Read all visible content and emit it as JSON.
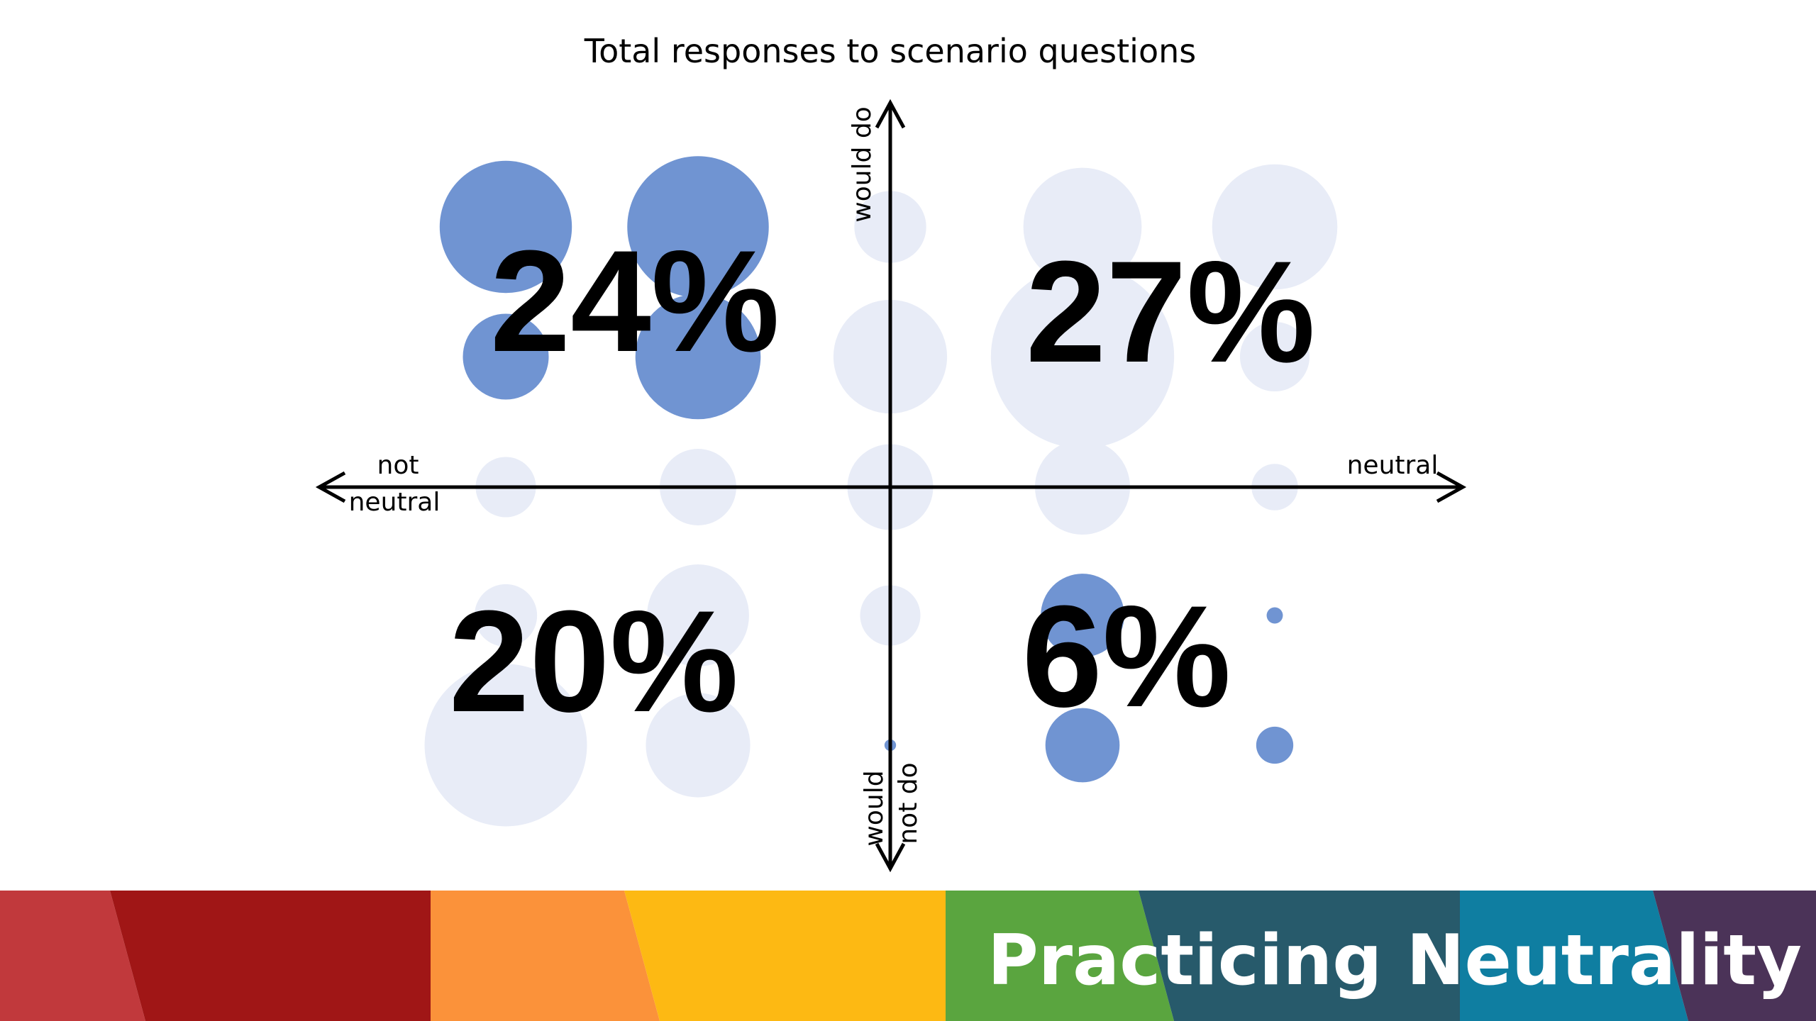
{
  "chart_data": {
    "type": "scatter",
    "title": "Total responses to scenario questions",
    "axis_labels": {
      "x_left": [
        "not",
        "neutral"
      ],
      "x_right": "neutral",
      "y_top": "would do",
      "y_bottom": [
        "would",
        "not do"
      ]
    },
    "x_columns": [
      -2,
      -1,
      0,
      1,
      2
    ],
    "y_rows": [
      2,
      1,
      0,
      -1,
      -2
    ],
    "series": [
      {
        "color": "#7094d2",
        "points": [
          {
            "x": -2,
            "y": 2,
            "size": 57
          },
          {
            "x": -1,
            "y": 2,
            "size": 61
          },
          {
            "x": -2,
            "y": 1,
            "size": 37
          },
          {
            "x": -1,
            "y": 1,
            "size": 54
          },
          {
            "x": 1,
            "y": -1,
            "size": 36
          },
          {
            "x": 1,
            "y": -2,
            "size": 32
          },
          {
            "x": 2,
            "y": -1,
            "size": 7
          },
          {
            "x": 2,
            "y": -2,
            "size": 16
          },
          {
            "x": 0,
            "y": -2,
            "size": 5
          }
        ]
      },
      {
        "color": "#e8ecf7",
        "points": [
          {
            "x": 0,
            "y": 2,
            "size": 31
          },
          {
            "x": 1,
            "y": 2,
            "size": 51
          },
          {
            "x": 2,
            "y": 2,
            "size": 54
          },
          {
            "x": 0,
            "y": 1,
            "size": 49
          },
          {
            "x": 1,
            "y": 1,
            "size": 79
          },
          {
            "x": 2,
            "y": 1,
            "size": 30
          },
          {
            "x": -2,
            "y": 0,
            "size": 26
          },
          {
            "x": -1,
            "y": 0,
            "size": 33
          },
          {
            "x": 0,
            "y": 0,
            "size": 37
          },
          {
            "x": 1,
            "y": 0,
            "size": 41
          },
          {
            "x": 2,
            "y": 0,
            "size": 20
          },
          {
            "x": -2,
            "y": -1,
            "size": 27
          },
          {
            "x": -1,
            "y": -1,
            "size": 44
          },
          {
            "x": 0,
            "y": -1,
            "size": 26
          },
          {
            "x": -2,
            "y": -2,
            "size": 70
          },
          {
            "x": -1,
            "y": -2,
            "size": 45
          }
        ]
      }
    ],
    "quadrants": [
      {
        "position": "top-left",
        "label": "24%"
      },
      {
        "position": "top-right",
        "label": "27%"
      },
      {
        "position": "bottom-left",
        "label": "20%"
      },
      {
        "position": "bottom-right",
        "label": "6%"
      }
    ]
  },
  "banner": {
    "title": "Practicing Neutrality",
    "colors": [
      "#c1393c",
      "#a01616",
      "#fb923a",
      "#fdb913",
      "#5aa53f",
      "#275a6b",
      "#0f7ea1",
      "#4b3358"
    ]
  }
}
